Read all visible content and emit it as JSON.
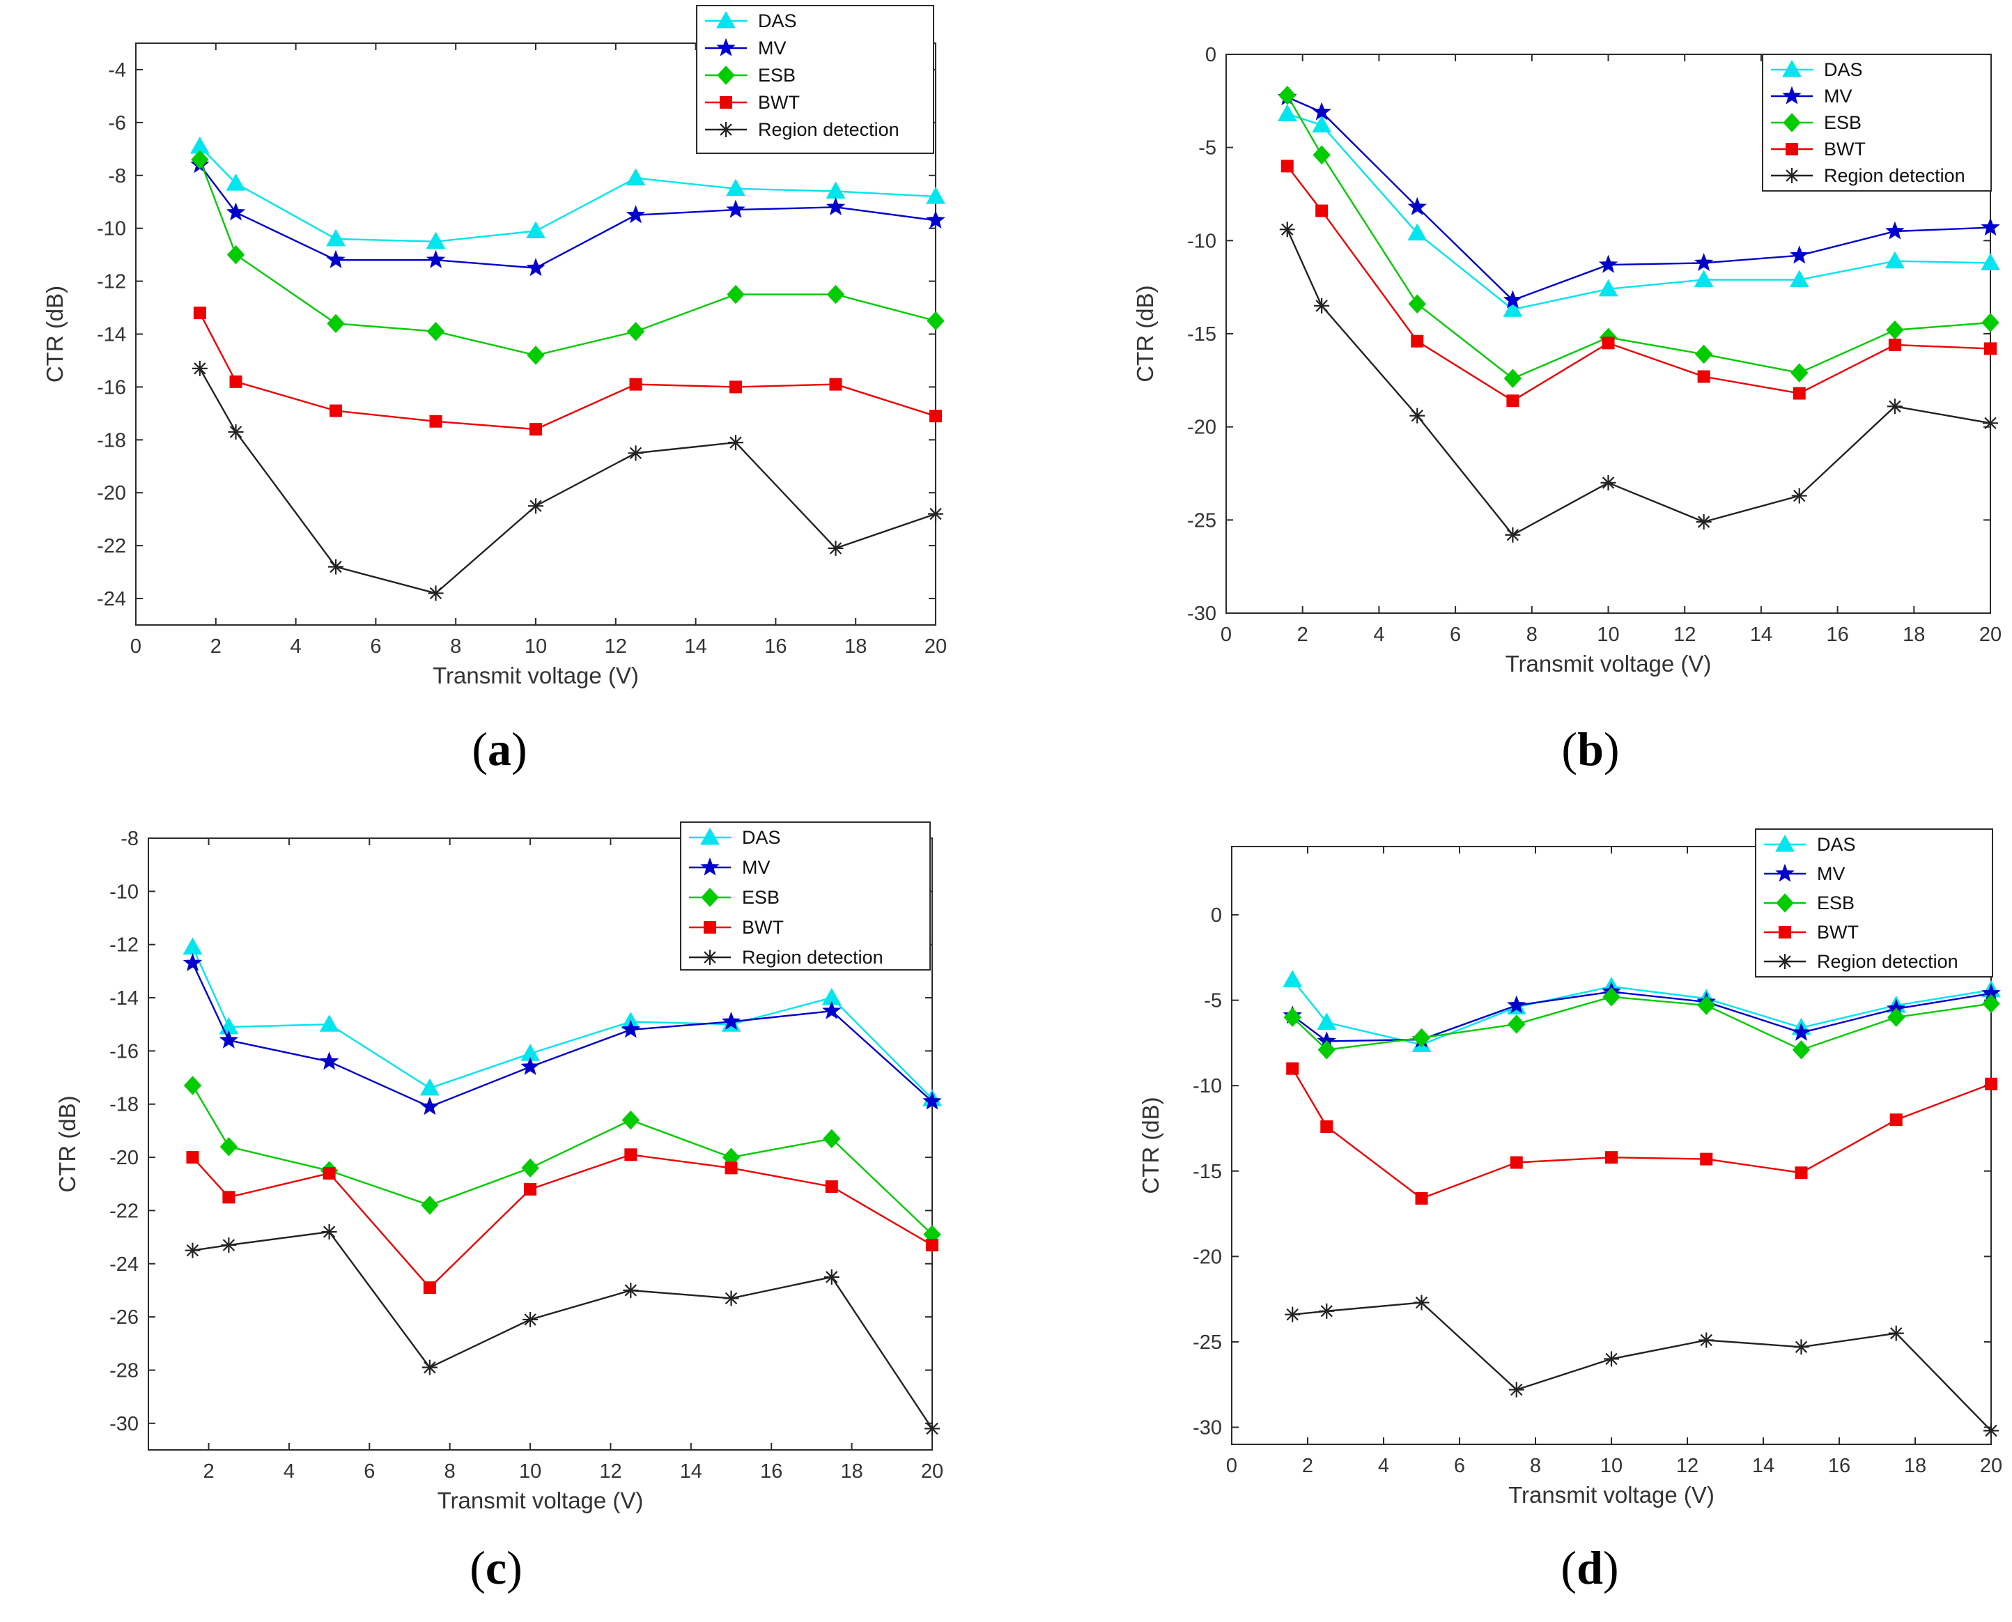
{
  "chart_data": [
    {
      "type": "line",
      "panel_label": "a",
      "xlabel": "Transmit voltage (V)",
      "ylabel": "CTR (dB)",
      "xlim": [
        0,
        20
      ],
      "ylim": [
        -25,
        -3
      ],
      "xticks": [
        0,
        2,
        4,
        6,
        8,
        10,
        12,
        14,
        16,
        18,
        20
      ],
      "yticks": [
        -24,
        -22,
        -20,
        -18,
        -16,
        -14,
        -12,
        -10,
        -8,
        -6,
        -4
      ],
      "x": [
        1.6,
        2.5,
        5,
        7.5,
        10,
        12.5,
        15,
        17.5,
        20
      ],
      "legend_position": "top-right",
      "series": [
        {
          "name": "DAS",
          "color": "#00e5ee",
          "marker": "triangle",
          "values": [
            -6.9,
            -8.3,
            -10.4,
            -10.5,
            -10.1,
            -8.1,
            -8.5,
            -8.6,
            -8.8
          ]
        },
        {
          "name": "MV",
          "color": "#0000cd",
          "marker": "star",
          "values": [
            -7.6,
            -9.4,
            -11.2,
            -11.2,
            -11.5,
            -9.5,
            -9.3,
            -9.2,
            -9.7
          ]
        },
        {
          "name": "ESB",
          "color": "#00cc00",
          "marker": "diamond",
          "values": [
            -7.4,
            -11.0,
            -13.6,
            -13.9,
            -14.8,
            -13.9,
            -12.5,
            -12.5,
            -13.5
          ]
        },
        {
          "name": "BWT",
          "color": "#ee0000",
          "marker": "square",
          "values": [
            -13.2,
            -15.8,
            -16.9,
            -17.3,
            -17.6,
            -15.9,
            -16.0,
            -15.9,
            -17.1
          ]
        },
        {
          "name": "Region detection",
          "color": "#222222",
          "marker": "asterisk",
          "values": [
            -15.3,
            -17.7,
            -22.8,
            -23.8,
            -20.5,
            -18.5,
            -18.1,
            -22.1,
            -20.8
          ]
        }
      ]
    },
    {
      "type": "line",
      "panel_label": "b",
      "xlabel": "Transmit voltage (V)",
      "ylabel": "CTR (dB)",
      "xlim": [
        0,
        20
      ],
      "ylim": [
        -30,
        0
      ],
      "xticks": [
        0,
        2,
        4,
        6,
        8,
        10,
        12,
        14,
        16,
        18,
        20
      ],
      "yticks": [
        -30,
        -25,
        -20,
        -15,
        -10,
        -5,
        0
      ],
      "x": [
        1.6,
        2.5,
        5,
        7.5,
        10,
        12.5,
        15,
        17.5,
        20
      ],
      "legend_position": "top-right",
      "series": [
        {
          "name": "DAS",
          "color": "#00e5ee",
          "marker": "triangle",
          "values": [
            -3.2,
            -3.8,
            -9.6,
            -13.7,
            -12.6,
            -12.1,
            -12.1,
            -11.1,
            -11.2
          ]
        },
        {
          "name": "MV",
          "color": "#0000cd",
          "marker": "star",
          "values": [
            -2.3,
            -3.1,
            -8.2,
            -13.2,
            -11.3,
            -11.2,
            -10.8,
            -9.5,
            -9.3
          ]
        },
        {
          "name": "ESB",
          "color": "#00cc00",
          "marker": "diamond",
          "values": [
            -2.2,
            -5.4,
            -13.4,
            -17.4,
            -15.2,
            -16.1,
            -17.1,
            -14.8,
            -14.4
          ]
        },
        {
          "name": "BWT",
          "color": "#ee0000",
          "marker": "square",
          "values": [
            -6.0,
            -8.4,
            -15.4,
            -18.6,
            -15.5,
            -17.3,
            -18.2,
            -15.6,
            -15.8
          ]
        },
        {
          "name": "Region detection",
          "color": "#222222",
          "marker": "asterisk",
          "values": [
            -9.4,
            -13.5,
            -19.4,
            -25.8,
            -23.0,
            -25.1,
            -23.7,
            -18.9,
            -19.8
          ]
        }
      ]
    },
    {
      "type": "line",
      "panel_label": "c",
      "xlabel": "Transmit voltage (V)",
      "ylabel": "CTR (dB)",
      "xlim": [
        0.5,
        20
      ],
      "ylim": [
        -31,
        -8
      ],
      "xticks": [
        2,
        4,
        6,
        8,
        10,
        12,
        14,
        16,
        18,
        20
      ],
      "yticks": [
        -30,
        -28,
        -26,
        -24,
        -22,
        -20,
        -18,
        -16,
        -14,
        -12,
        -10,
        -8
      ],
      "x": [
        1.6,
        2.5,
        5,
        7.5,
        10,
        12.5,
        15,
        17.5,
        20
      ],
      "legend_position": "top-right",
      "series": [
        {
          "name": "DAS",
          "color": "#00e5ee",
          "marker": "triangle",
          "values": [
            -12.1,
            -15.1,
            -15.0,
            -17.4,
            -16.1,
            -14.9,
            -15.0,
            -14.0,
            -17.8
          ]
        },
        {
          "name": "MV",
          "color": "#0000cd",
          "marker": "star",
          "values": [
            -12.7,
            -15.6,
            -16.4,
            -18.1,
            -16.6,
            -15.2,
            -14.9,
            -14.5,
            -17.9
          ]
        },
        {
          "name": "ESB",
          "color": "#00cc00",
          "marker": "diamond",
          "values": [
            -17.3,
            -19.6,
            -20.5,
            -21.8,
            -20.4,
            -18.6,
            -20.0,
            -19.3,
            -22.9
          ]
        },
        {
          "name": "BWT",
          "color": "#ee0000",
          "marker": "square",
          "values": [
            -20.0,
            -21.5,
            -20.6,
            -24.9,
            -21.2,
            -19.9,
            -20.4,
            -21.1,
            -23.3
          ]
        },
        {
          "name": "Region detection",
          "color": "#222222",
          "marker": "asterisk",
          "values": [
            -23.5,
            -23.3,
            -22.8,
            -27.9,
            -26.1,
            -25.0,
            -25.3,
            -24.5,
            -30.2
          ]
        }
      ]
    },
    {
      "type": "line",
      "panel_label": "d",
      "xlabel": "Transmit voltage (V)",
      "ylabel": "CTR (dB)",
      "xlim": [
        0,
        20
      ],
      "ylim": [
        -31,
        4
      ],
      "xticks": [
        0,
        2,
        4,
        6,
        8,
        10,
        12,
        14,
        16,
        18,
        20
      ],
      "yticks": [
        -30,
        -25,
        -20,
        -15,
        -10,
        -5,
        0
      ],
      "x": [
        1.6,
        2.5,
        5,
        7.5,
        10,
        12.5,
        15,
        17.5,
        20
      ],
      "legend_position": "top-right",
      "series": [
        {
          "name": "DAS",
          "color": "#00e5ee",
          "marker": "triangle",
          "values": [
            -3.8,
            -6.3,
            -7.6,
            -5.4,
            -4.2,
            -4.9,
            -6.6,
            -5.3,
            -4.4
          ]
        },
        {
          "name": "MV",
          "color": "#0000cd",
          "marker": "star",
          "values": [
            -5.9,
            -7.4,
            -7.3,
            -5.3,
            -4.5,
            -5.1,
            -6.9,
            -5.5,
            -4.6
          ]
        },
        {
          "name": "ESB",
          "color": "#00cc00",
          "marker": "diamond",
          "values": [
            -6.0,
            -7.9,
            -7.2,
            -6.4,
            -4.8,
            -5.3,
            -7.9,
            -6.0,
            -5.2
          ]
        },
        {
          "name": "BWT",
          "color": "#ee0000",
          "marker": "square",
          "values": [
            -9.0,
            -12.4,
            -16.6,
            -14.5,
            -14.2,
            -14.3,
            -15.1,
            -12.0,
            -9.9
          ]
        },
        {
          "name": "Region detection",
          "color": "#222222",
          "marker": "asterisk",
          "values": [
            -23.4,
            -23.2,
            -22.7,
            -27.8,
            -26.0,
            -24.9,
            -25.3,
            -24.5,
            -30.2
          ]
        }
      ]
    }
  ]
}
